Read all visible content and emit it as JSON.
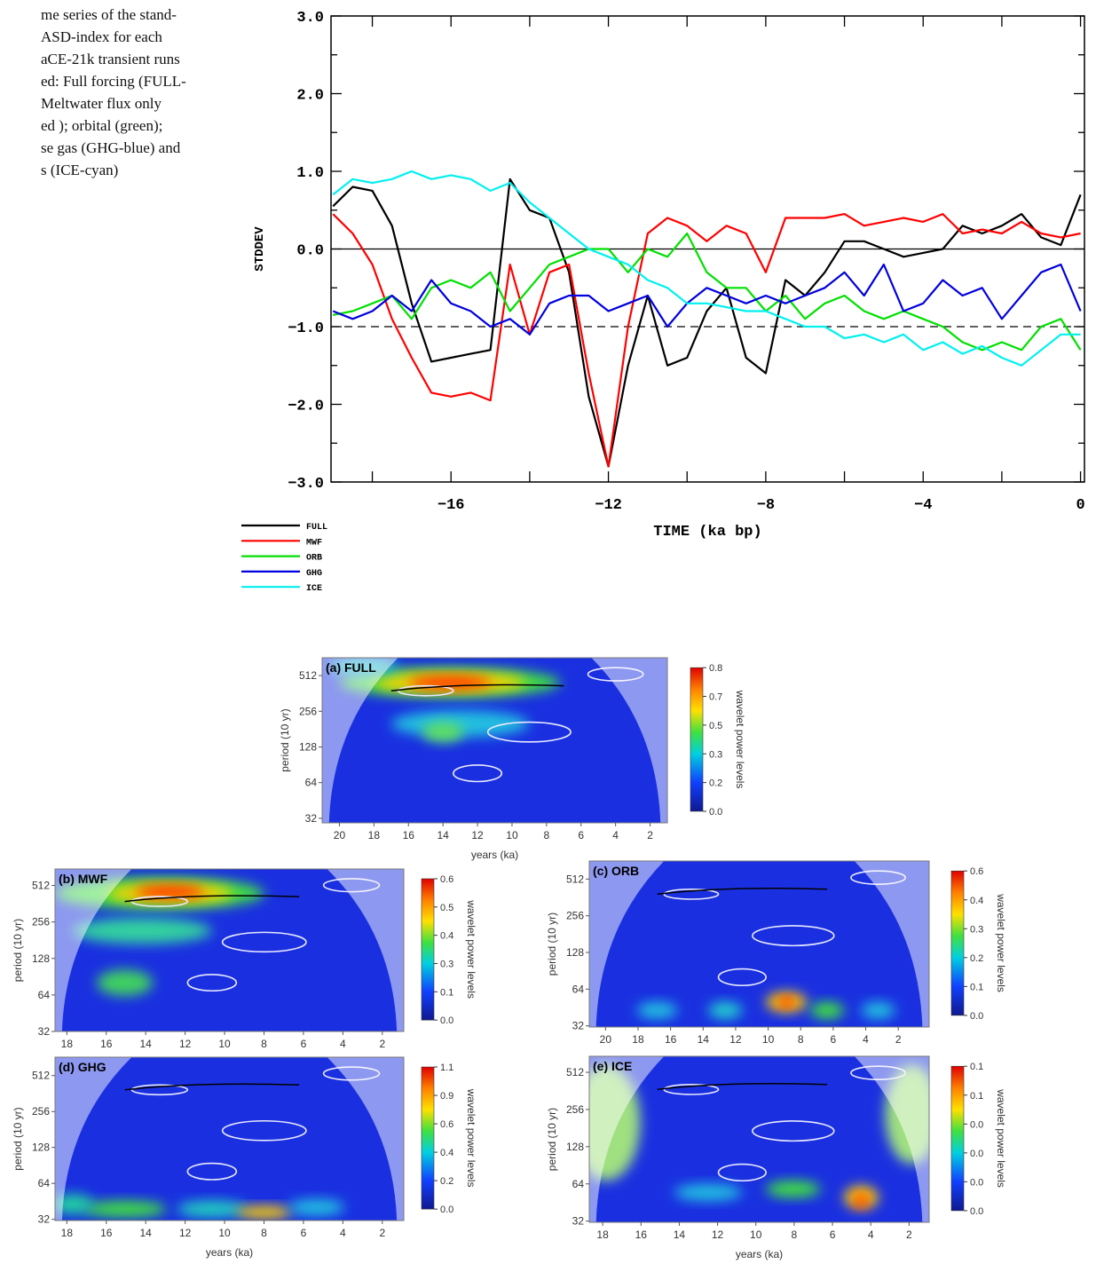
{
  "caption": [
    "me series of the stand-",
    "ASD-index for each",
    "aCE-21k transient runs",
    "ed: Full forcing (FULL-",
    "Meltwater flux only",
    "ed ); orbital (green);",
    "se gas (GHG-blue) and",
    "s (ICE-cyan)"
  ],
  "chart_data": [
    {
      "type": "line",
      "xlabel": "TIME (ka bp)",
      "ylabel": "STDDEV",
      "xlim": [
        -19.05,
        0.1
      ],
      "ylim": [
        -3,
        3
      ],
      "xticks": [
        {
          "value": -16,
          "label": "−16"
        },
        {
          "value": -12,
          "label": "−12"
        },
        {
          "value": -8,
          "label": "−8"
        },
        {
          "value": -4,
          "label": "−4"
        },
        0
      ],
      "xminorticks": [
        -18,
        -14,
        -10,
        -6,
        -2
      ],
      "yticks": [
        {
          "value": 3,
          "label": "3.0"
        },
        {
          "value": 2,
          "label": "2.0"
        },
        {
          "value": 1,
          "label": "1.0"
        },
        {
          "value": 0,
          "label": "0.0"
        },
        {
          "value": -1,
          "label": "−1.0"
        },
        {
          "value": -2,
          "label": "−2.0"
        },
        {
          "value": -3,
          "label": "−3.0"
        }
      ],
      "yminorticks": [
        2.5,
        1.5,
        0.5,
        -0.5,
        -1.5,
        -2.5
      ],
      "reference_lines": [
        {
          "value": 0,
          "style": "solid"
        },
        {
          "value": -1,
          "style": "dashed"
        }
      ],
      "legend": "below-left",
      "x": [
        -19,
        -18.5,
        -18,
        -17.5,
        -17,
        -16.5,
        -16,
        -15.5,
        -15,
        -14.5,
        -14,
        -13.5,
        -13,
        -12.5,
        -12,
        -11.5,
        -11,
        -10.5,
        -10,
        -9.5,
        -9,
        -8.5,
        -8,
        -7.5,
        -7,
        -6.5,
        -6,
        -5.5,
        -5,
        -4.5,
        -4,
        -3.5,
        -3,
        -2.5,
        -2,
        -1.5,
        -1,
        -0.5,
        0
      ],
      "series": [
        {
          "name": "FULL",
          "color": "#000000",
          "values": [
            0.55,
            0.8,
            0.75,
            0.3,
            -0.7,
            -1.45,
            -1.4,
            -1.35,
            -1.3,
            0.9,
            0.5,
            0.4,
            -0.3,
            -1.9,
            -2.8,
            -1.5,
            -0.6,
            -1.5,
            -1.4,
            -0.8,
            -0.5,
            -1.4,
            -1.6,
            -0.4,
            -0.6,
            -0.3,
            0.1,
            0.1,
            0.0,
            -0.1,
            -0.05,
            0.0,
            0.3,
            0.2,
            0.3,
            0.45,
            0.15,
            0.05,
            0.7
          ]
        },
        {
          "name": "MWF",
          "color": "#ff0000",
          "values": [
            0.45,
            0.2,
            -0.2,
            -0.9,
            -1.4,
            -1.85,
            -1.9,
            -1.85,
            -1.95,
            -0.2,
            -1.1,
            -0.3,
            -0.2,
            -1.6,
            -2.8,
            -1.0,
            0.2,
            0.4,
            0.3,
            0.1,
            0.3,
            0.2,
            -0.3,
            0.4,
            0.4,
            0.4,
            0.45,
            0.3,
            0.35,
            0.4,
            0.35,
            0.45,
            0.2,
            0.25,
            0.2,
            0.35,
            0.2,
            0.15,
            0.2
          ]
        },
        {
          "name": "ORB",
          "color": "#00e000",
          "values": [
            -0.85,
            -0.8,
            -0.7,
            -0.6,
            -0.9,
            -0.5,
            -0.4,
            -0.5,
            -0.3,
            -0.8,
            -0.5,
            -0.2,
            -0.1,
            0.0,
            0.0,
            -0.3,
            0.0,
            -0.1,
            0.2,
            -0.3,
            -0.5,
            -0.5,
            -0.8,
            -0.6,
            -0.9,
            -0.7,
            -0.6,
            -0.8,
            -0.9,
            -0.8,
            -0.9,
            -1.0,
            -1.2,
            -1.3,
            -1.2,
            -1.3,
            -1.0,
            -0.9,
            -1.3
          ]
        },
        {
          "name": "GHG",
          "color": "#0000e0",
          "values": [
            -0.8,
            -0.9,
            -0.8,
            -0.6,
            -0.8,
            -0.4,
            -0.7,
            -0.8,
            -1.0,
            -0.9,
            -1.1,
            -0.7,
            -0.6,
            -0.6,
            -0.8,
            -0.7,
            -0.6,
            -1.0,
            -0.7,
            -0.5,
            -0.6,
            -0.7,
            -0.6,
            -0.7,
            -0.6,
            -0.5,
            -0.3,
            -0.6,
            -0.2,
            -0.8,
            -0.7,
            -0.4,
            -0.6,
            -0.5,
            -0.9,
            -0.6,
            -0.3,
            -0.2,
            -0.8
          ]
        },
        {
          "name": "ICE",
          "color": "#00f0f0",
          "values": [
            0.7,
            0.9,
            0.85,
            0.9,
            1.0,
            0.9,
            0.95,
            0.9,
            0.75,
            0.85,
            0.6,
            0.4,
            0.2,
            0.0,
            -0.1,
            -0.2,
            -0.4,
            -0.5,
            -0.7,
            -0.7,
            -0.75,
            -0.8,
            -0.8,
            -0.9,
            -1.0,
            -1.0,
            -1.15,
            -1.1,
            -1.2,
            -1.1,
            -1.3,
            -1.2,
            -1.35,
            -1.25,
            -1.4,
            -1.5,
            -1.3,
            -1.1,
            -1.1
          ]
        }
      ]
    },
    {
      "type": "wavelet",
      "title": "(a) FULL",
      "xlabel": "years (ka)",
      "ylabel": "period (10 yr)",
      "colorbar_label": "wavelet power levels",
      "log_y": true,
      "xlim": [
        21,
        1
      ],
      "ylim": [
        29.3,
        724
      ],
      "xticks": [
        20,
        18,
        16,
        14,
        12,
        10,
        8,
        6,
        4,
        2
      ],
      "yticks": [
        32,
        64,
        128,
        256,
        512
      ],
      "colorbar_ticks": [
        0.8,
        0.7,
        0.5,
        0.3,
        0.2,
        {
          "value": 0,
          "label": "0.0"
        }
      ]
    },
    {
      "type": "wavelet",
      "title": "(b) MWF",
      "ylabel": "period (10 yr)",
      "colorbar_label": "wavelet power levels",
      "log_y": true,
      "xlim": [
        18.6,
        0.91
      ],
      "ylim": [
        32,
        700
      ],
      "xticks": [
        18,
        16,
        14,
        12,
        10,
        8,
        6,
        4,
        2
      ],
      "yticks": [
        32,
        64,
        128,
        256,
        512
      ],
      "colorbar_ticks": [
        0.6,
        0.5,
        0.4,
        0.3,
        0.1,
        {
          "value": 0,
          "label": "0.0"
        }
      ]
    },
    {
      "type": "wavelet",
      "title": "(c) ORB",
      "ylabel": "period (10 yr)",
      "colorbar_label": "wavelet power levels",
      "log_y": true,
      "xlim": [
        21,
        0.1
      ],
      "ylim": [
        31.3,
        720
      ],
      "xticks": [
        20,
        18,
        16,
        14,
        12,
        10,
        8,
        6,
        4,
        2
      ],
      "yticks": [
        32,
        64,
        128,
        256,
        512
      ],
      "colorbar_ticks": [
        0.6,
        0.4,
        0.3,
        0.2,
        0.1,
        {
          "value": 0,
          "label": "0.0"
        }
      ]
    },
    {
      "type": "wavelet",
      "title": "(d) GHG",
      "xlabel": "years (ka)",
      "ylabel": "period (10 yr)",
      "colorbar_label": "wavelet power levels",
      "log_y": true,
      "xlim": [
        18.6,
        0.91
      ],
      "ylim": [
        31.3,
        730
      ],
      "xticks": [
        18,
        16,
        14,
        12,
        10,
        8,
        6,
        4,
        2
      ],
      "yticks": [
        32,
        64,
        128,
        256,
        512
      ],
      "colorbar_ticks": [
        1.1,
        0.9,
        0.6,
        0.4,
        0.2,
        {
          "value": 0,
          "label": "0.0"
        }
      ]
    },
    {
      "type": "wavelet",
      "title": "(e) ICE",
      "xlabel": "years (ka)",
      "ylabel": "period (10 yr)",
      "colorbar_label": "wavelet power levels",
      "log_y": true,
      "xlim": [
        18.7,
        0.95
      ],
      "ylim": [
        31.3,
        690
      ],
      "xticks": [
        18,
        16,
        14,
        12,
        10,
        8,
        6,
        4,
        2
      ],
      "yticks": [
        32,
        64,
        128,
        256,
        512
      ],
      "colorbar_ticks": [
        0.1,
        0.1,
        {
          "value": 0,
          "label": "0.0"
        },
        {
          "value": 0,
          "label": "0.0"
        },
        {
          "value": 0,
          "label": "0.0"
        },
        {
          "value": 0,
          "label": "0.0"
        }
      ]
    }
  ]
}
